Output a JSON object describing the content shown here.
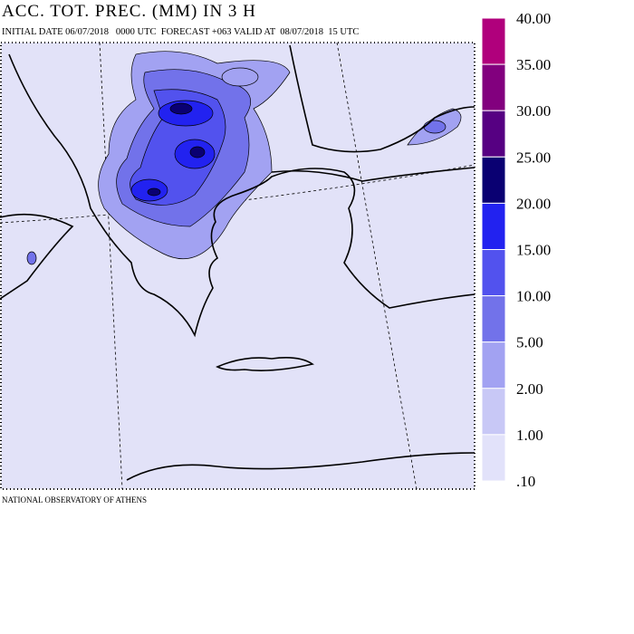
{
  "header": {
    "title": "ACC. TOT. PREC. (MM) IN 3 H",
    "subtitle": "INITIAL DATE 06/07/2018   0000 UTC  FORECAST +063 VALID AT  08/07/2018  15 UTC"
  },
  "legend": {
    "labels": [
      "40.00",
      "35.00",
      "30.00",
      "25.00",
      "20.00",
      "15.00",
      "10.00",
      "5.00",
      "2.00",
      "1.00",
      ".10"
    ],
    "colors": [
      "#b0007c",
      "#82007e",
      "#560082",
      "#0a0072",
      "#2222f0",
      "#5252ee",
      "#7272ea",
      "#a2a2f2",
      "#c8c8f6",
      "#e2e2fa"
    ]
  },
  "footer": {
    "text": "NATIONAL OBSERVATORY OF ATHENS"
  }
}
